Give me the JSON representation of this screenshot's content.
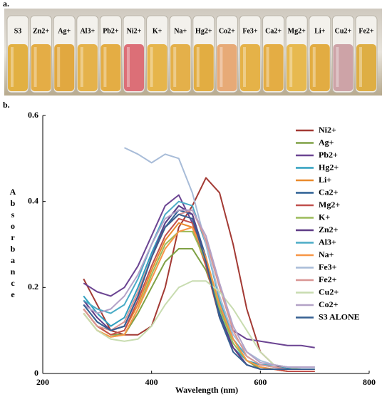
{
  "panel_a": {
    "label": "a.",
    "vials": [
      "S3",
      "Zn2+",
      "Ag+",
      "Al3+",
      "Pb2+",
      "Ni2+",
      "K+",
      "Na+",
      "Hg2+",
      "Co2+",
      "Fe3+",
      "Ca2+",
      "Mg2+",
      "Li+",
      "Cu2+",
      "Fe2+"
    ]
  },
  "chart_data": {
    "type": "line",
    "panel_label": "b.",
    "x_label": "Wavelength (nm)",
    "y_label": "Absorbance",
    "xlim": [
      200,
      800
    ],
    "xticks": [
      200,
      400,
      600,
      800
    ],
    "ylim": [
      0,
      0.6
    ],
    "yticks": [
      0,
      0.2,
      0.4,
      0.6
    ],
    "x": [
      275,
      300,
      325,
      350,
      375,
      400,
      425,
      450,
      475,
      500,
      525,
      550,
      575,
      600,
      625,
      650,
      675,
      700
    ],
    "series": [
      {
        "name": "Ni2+",
        "color": "#a33a34",
        "values": [
          0.22,
          0.16,
          0.1,
          0.09,
          0.09,
          0.11,
          0.2,
          0.34,
          0.39,
          0.455,
          0.42,
          0.3,
          0.15,
          0.05,
          0.02,
          0.01,
          0.01,
          0.01
        ]
      },
      {
        "name": "Ag+",
        "color": "#7fa145",
        "values": [
          0.15,
          0.11,
          0.09,
          0.09,
          0.14,
          0.2,
          0.26,
          0.29,
          0.29,
          0.24,
          0.15,
          0.08,
          0.03,
          0.01,
          0.01,
          0.005,
          0.005,
          0.005
        ]
      },
      {
        "name": "Pb2+",
        "color": "#6b4492",
        "values": [
          0.21,
          0.19,
          0.18,
          0.2,
          0.25,
          0.32,
          0.39,
          0.415,
          0.35,
          0.25,
          0.15,
          0.1,
          0.08,
          0.075,
          0.07,
          0.065,
          0.065,
          0.06
        ]
      },
      {
        "name": "Hg2+",
        "color": "#2f9fbf",
        "values": [
          0.18,
          0.14,
          0.11,
          0.13,
          0.2,
          0.28,
          0.35,
          0.39,
          0.37,
          0.26,
          0.14,
          0.06,
          0.03,
          0.02,
          0.015,
          0.012,
          0.01,
          0.01
        ]
      },
      {
        "name": "Li+",
        "color": "#ea8a2d",
        "values": [
          0.15,
          0.11,
          0.09,
          0.1,
          0.16,
          0.24,
          0.31,
          0.35,
          0.34,
          0.25,
          0.13,
          0.06,
          0.02,
          0.01,
          0.01,
          0.005,
          0.005,
          0.005
        ]
      },
      {
        "name": "Ca2+",
        "color": "#2c5f94",
        "values": [
          0.16,
          0.12,
          0.1,
          0.11,
          0.18,
          0.27,
          0.34,
          0.38,
          0.37,
          0.27,
          0.14,
          0.06,
          0.02,
          0.01,
          0.01,
          0.01,
          0.01,
          0.01
        ]
      },
      {
        "name": "Mg2+",
        "color": "#c0504d",
        "values": [
          0.15,
          0.11,
          0.09,
          0.1,
          0.17,
          0.25,
          0.32,
          0.36,
          0.35,
          0.25,
          0.13,
          0.06,
          0.02,
          0.01,
          0.01,
          0.005,
          0.005,
          0.005
        ]
      },
      {
        "name": "K+",
        "color": "#9bbb59",
        "values": [
          0.14,
          0.1,
          0.085,
          0.09,
          0.15,
          0.23,
          0.3,
          0.33,
          0.33,
          0.26,
          0.15,
          0.07,
          0.03,
          0.015,
          0.01,
          0.01,
          0.01,
          0.01
        ]
      },
      {
        "name": "Zn2+",
        "color": "#5f3c86",
        "values": [
          0.17,
          0.13,
          0.1,
          0.11,
          0.18,
          0.27,
          0.35,
          0.39,
          0.37,
          0.26,
          0.13,
          0.06,
          0.02,
          0.01,
          0.01,
          0.01,
          0.01,
          0.01
        ]
      },
      {
        "name": "Al3+",
        "color": "#4bacc6",
        "values": [
          0.17,
          0.15,
          0.14,
          0.16,
          0.22,
          0.3,
          0.37,
          0.4,
          0.39,
          0.3,
          0.17,
          0.08,
          0.04,
          0.02,
          0.02,
          0.015,
          0.015,
          0.015
        ]
      },
      {
        "name": "Na+",
        "color": "#f79646",
        "values": [
          0.14,
          0.1,
          0.085,
          0.09,
          0.15,
          0.22,
          0.29,
          0.33,
          0.34,
          0.27,
          0.16,
          0.08,
          0.03,
          0.015,
          0.01,
          0.01,
          0.01,
          0.01
        ]
      },
      {
        "name": "Fe3+",
        "color": "#a8bcd8",
        "values": [
          null,
          null,
          null,
          0.525,
          0.51,
          0.49,
          0.51,
          0.5,
          0.42,
          0.3,
          0.18,
          0.09,
          0.05,
          0.03,
          0.02,
          0.015,
          0.015,
          0.015
        ]
      },
      {
        "name": "Fe2+",
        "color": "#d99694",
        "values": [
          0.15,
          0.11,
          0.1,
          0.12,
          0.19,
          0.27,
          0.34,
          0.37,
          0.38,
          0.31,
          0.2,
          0.1,
          0.04,
          0.02,
          0.015,
          0.01,
          0.01,
          0.01
        ]
      },
      {
        "name": "Cu2+",
        "color": "#c8dcb0",
        "values": [
          0.14,
          0.1,
          0.08,
          0.075,
          0.08,
          0.11,
          0.16,
          0.2,
          0.215,
          0.215,
          0.19,
          0.15,
          0.1,
          0.05,
          0.02,
          0.015,
          0.01,
          0.01
        ]
      },
      {
        "name": "Co2+",
        "color": "#b3a2c7",
        "values": [
          0.16,
          0.14,
          0.15,
          0.18,
          0.23,
          0.3,
          0.36,
          0.38,
          0.38,
          0.32,
          0.21,
          0.11,
          0.05,
          0.025,
          0.02,
          0.015,
          0.015,
          0.015
        ]
      },
      {
        "name": "S3 ALONE",
        "color": "#366092",
        "values": [
          0.16,
          0.12,
          0.1,
          0.11,
          0.18,
          0.27,
          0.34,
          0.37,
          0.36,
          0.26,
          0.13,
          0.05,
          0.02,
          0.01,
          0.01,
          0.01,
          0.01,
          0.01
        ]
      }
    ]
  }
}
